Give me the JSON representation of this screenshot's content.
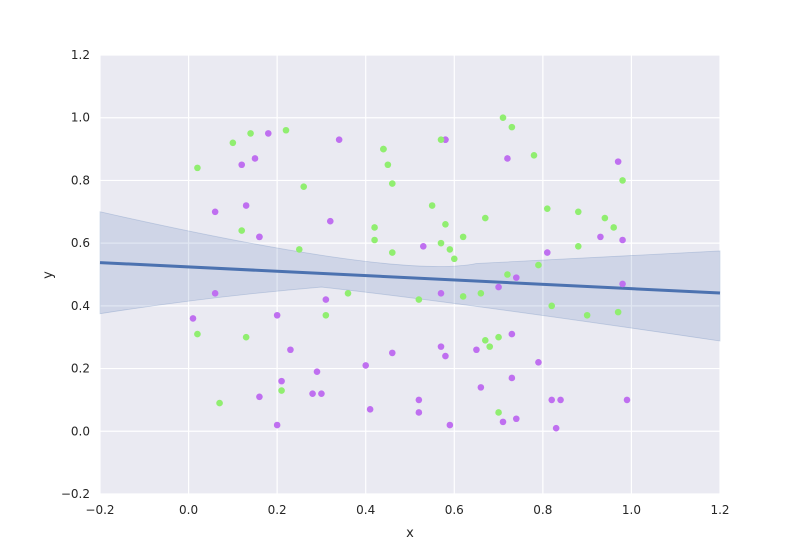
{
  "chart_data": {
    "type": "scatter",
    "title": "",
    "xlabel": "x",
    "ylabel": "y",
    "xlim": [
      -0.2,
      1.2
    ],
    "ylim": [
      -0.2,
      1.2
    ],
    "xticks": [
      "−0.2",
      "0.0",
      "0.2",
      "0.4",
      "0.6",
      "0.8",
      "1.0",
      "1.2"
    ],
    "yticks": [
      "−0.2",
      "0.0",
      "0.2",
      "0.4",
      "0.6",
      "0.8",
      "1.0",
      "1.2"
    ],
    "grid": true,
    "legend": "none",
    "colors": {
      "background": "#eaeaf2",
      "grid": "#ffffff",
      "purple": "#bf6ff0",
      "green": "#90ee70",
      "fit_line": "#4c72b0",
      "ci_band": "#4c72b0"
    },
    "fit": {
      "x": [
        -0.2,
        1.2
      ],
      "y": [
        0.538,
        0.441
      ],
      "ci_upper": [
        0.7,
        0.575
      ],
      "ci_lower": [
        0.375,
        0.288
      ],
      "ci_mid": [
        0.3,
        0.65
      ],
      "ci_mid_upper": [
        0.57,
        0.535
      ],
      "ci_mid_lower": [
        0.46,
        0.405
      ]
    },
    "series": [
      {
        "color": "purple",
        "x": [
          0.01,
          0.06,
          0.06,
          0.13,
          0.12,
          0.15,
          0.16,
          0.16,
          0.16,
          0.18,
          0.2,
          0.2,
          0.21,
          0.23,
          0.28,
          0.29,
          0.3,
          0.31,
          0.32,
          0.34,
          0.4,
          0.41,
          0.46,
          0.52,
          0.52,
          0.53,
          0.57,
          0.57,
          0.58,
          0.58,
          0.59,
          0.65,
          0.66,
          0.7,
          0.71,
          0.72,
          0.73,
          0.73,
          0.74,
          0.74,
          0.79,
          0.81,
          0.82,
          0.83,
          0.84,
          0.93,
          0.97,
          0.98,
          0.98,
          0.99,
          0.58
        ],
        "y": [
          0.36,
          0.44,
          0.7,
          0.72,
          0.85,
          0.87,
          0.62,
          0.62,
          0.11,
          0.95,
          0.37,
          0.02,
          0.16,
          0.26,
          0.12,
          0.19,
          0.12,
          0.42,
          0.67,
          0.93,
          0.21,
          0.07,
          0.25,
          0.1,
          0.06,
          0.59,
          0.27,
          0.44,
          0.93,
          0.24,
          0.02,
          0.26,
          0.14,
          0.46,
          0.03,
          0.87,
          0.31,
          0.17,
          0.49,
          0.04,
          0.22,
          0.57,
          0.1,
          0.01,
          0.1,
          0.62,
          0.86,
          0.61,
          0.47,
          0.1,
          0.93
        ]
      },
      {
        "color": "green",
        "x": [
          0.02,
          0.02,
          0.07,
          0.1,
          0.12,
          0.13,
          0.14,
          0.21,
          0.22,
          0.25,
          0.26,
          0.31,
          0.36,
          0.42,
          0.42,
          0.44,
          0.44,
          0.45,
          0.46,
          0.46,
          0.52,
          0.55,
          0.57,
          0.57,
          0.58,
          0.59,
          0.6,
          0.62,
          0.62,
          0.66,
          0.67,
          0.67,
          0.68,
          0.7,
          0.7,
          0.71,
          0.72,
          0.73,
          0.78,
          0.79,
          0.81,
          0.82,
          0.88,
          0.88,
          0.9,
          0.94,
          0.96,
          0.97,
          0.98
        ],
        "y": [
          0.84,
          0.31,
          0.09,
          0.92,
          0.64,
          0.3,
          0.95,
          0.13,
          0.96,
          0.58,
          0.78,
          0.37,
          0.44,
          0.65,
          0.61,
          0.9,
          0.9,
          0.85,
          0.57,
          0.79,
          0.42,
          0.72,
          0.93,
          0.6,
          0.66,
          0.58,
          0.55,
          0.62,
          0.43,
          0.44,
          0.29,
          0.68,
          0.27,
          0.3,
          0.06,
          1.0,
          0.5,
          0.97,
          0.88,
          0.53,
          0.71,
          0.4,
          0.59,
          0.7,
          0.37,
          0.68,
          0.65,
          0.38,
          0.8
        ]
      }
    ]
  }
}
